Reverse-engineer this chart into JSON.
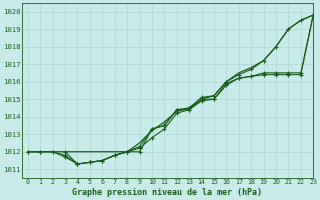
{
  "xlabel": "Graphe pression niveau de la mer (hPa)",
  "xlim": [
    -0.5,
    23
  ],
  "ylim": [
    1010.5,
    1020.5
  ],
  "yticks": [
    1011,
    1012,
    1013,
    1014,
    1015,
    1016,
    1017,
    1018,
    1019,
    1020
  ],
  "xticks": [
    0,
    1,
    2,
    3,
    4,
    5,
    6,
    7,
    8,
    9,
    10,
    11,
    12,
    13,
    14,
    15,
    16,
    17,
    18,
    19,
    20,
    21,
    22,
    23
  ],
  "background_color": "#caeaea",
  "grid_color": "#afd4d4",
  "line_color": "#1a5c1a",
  "line1_x": [
    0,
    1,
    2,
    3,
    4,
    5,
    6,
    7,
    8,
    9,
    10,
    11,
    12,
    13,
    14,
    15,
    16,
    17,
    18,
    19,
    20,
    21,
    22,
    23
  ],
  "line1_y": [
    1012.0,
    1012.0,
    1012.0,
    1012.0,
    1012.0,
    1012.0,
    1012.0,
    1012.0,
    1012.0,
    1012.5,
    1013.2,
    1013.7,
    1014.3,
    1014.5,
    1015.0,
    1015.2,
    1016.0,
    1016.5,
    1016.8,
    1017.2,
    1018.0,
    1019.0,
    1019.5,
    1019.8
  ],
  "line2_x": [
    0,
    1,
    2,
    3,
    4,
    5,
    6,
    7,
    8,
    9,
    10,
    11,
    12,
    13,
    14,
    15,
    16,
    17,
    18,
    19,
    20,
    21,
    22,
    23
  ],
  "line2_y": [
    1012.0,
    1012.0,
    1012.0,
    1011.8,
    1011.3,
    1011.4,
    1011.5,
    1011.8,
    1012.0,
    1012.2,
    1012.8,
    1013.3,
    1014.2,
    1014.4,
    1014.9,
    1015.0,
    1015.8,
    1016.2,
    1016.3,
    1016.4,
    1016.4,
    1016.4,
    1016.4,
    1019.8
  ],
  "line3_x": [
    0,
    1,
    2,
    3,
    4,
    5,
    6,
    7,
    8,
    9,
    10,
    11,
    12,
    13,
    14,
    15,
    16,
    17,
    18,
    19,
    20,
    21,
    22,
    23
  ],
  "line3_y": [
    1012.0,
    1012.0,
    1012.0,
    1011.7,
    1011.3,
    1011.4,
    1011.5,
    1011.8,
    1012.0,
    1012.0,
    1013.3,
    1013.5,
    1014.4,
    1014.4,
    1015.0,
    1015.0,
    1015.9,
    1016.2,
    1016.3,
    1016.5,
    1016.5,
    1016.5,
    1016.5,
    1019.8
  ],
  "line4_x": [
    3,
    4,
    5,
    6,
    7,
    8,
    9,
    10,
    11,
    12,
    13,
    14,
    15,
    16,
    17,
    18,
    19,
    20,
    21,
    22,
    23
  ],
  "line4_y": [
    1012.0,
    1011.3,
    1011.4,
    1011.5,
    1011.8,
    1012.0,
    1012.3,
    1013.3,
    1013.5,
    1014.4,
    1014.5,
    1015.1,
    1015.2,
    1016.0,
    1016.4,
    1016.7,
    1017.2,
    1018.0,
    1019.0,
    1019.5,
    1019.8
  ]
}
